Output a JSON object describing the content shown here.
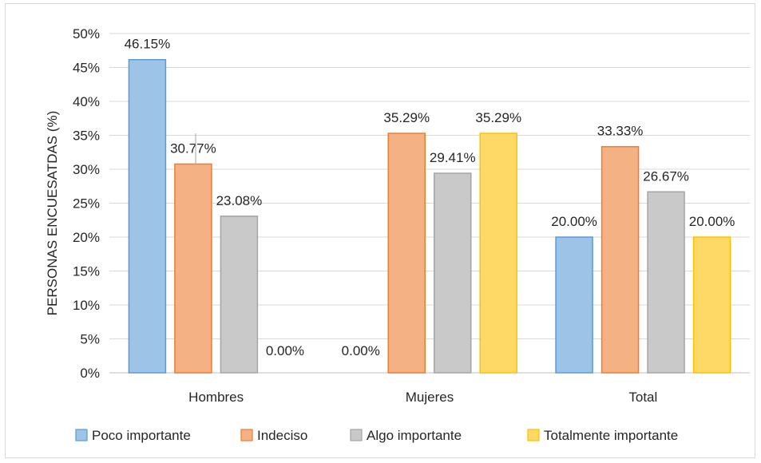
{
  "chart_data": {
    "type": "bar",
    "title": "",
    "xlabel": "",
    "ylabel": "PERSONAS ENCUESATDAS (%)",
    "ylim": [
      0,
      50
    ],
    "ytick_step": 5,
    "ytick_labels": [
      "0%",
      "5%",
      "10%",
      "15%",
      "20%",
      "25%",
      "30%",
      "35%",
      "40%",
      "45%",
      "50%"
    ],
    "categories": [
      "Hombres",
      "Mujeres",
      "Total"
    ],
    "series": [
      {
        "name": "Poco importante",
        "values": [
          46.15,
          0.0,
          20.0
        ],
        "labels": [
          "46.15%",
          "0.00%",
          "20.00%"
        ],
        "color": "#9dc3e6",
        "stroke": "#5b9bd5"
      },
      {
        "name": "Indeciso",
        "values": [
          30.77,
          35.29,
          33.33
        ],
        "labels": [
          "30.77%",
          "35.29%",
          "33.33%"
        ],
        "color": "#f4b183",
        "stroke": "#ed7d31"
      },
      {
        "name": "Algo importante",
        "values": [
          23.08,
          29.41,
          26.67
        ],
        "labels": [
          "23.08%",
          "29.41%",
          "26.67%"
        ],
        "color": "#c9c9c9",
        "stroke": "#a5a5a5"
      },
      {
        "name": "Totalmente importante",
        "values": [
          0.0,
          35.29,
          20.0
        ],
        "labels": [
          "0.00%",
          "35.29%",
          "20.00%"
        ],
        "color": "#ffd966",
        "stroke": "#ffc000"
      }
    ],
    "grid": true,
    "legend_position": "bottom"
  }
}
